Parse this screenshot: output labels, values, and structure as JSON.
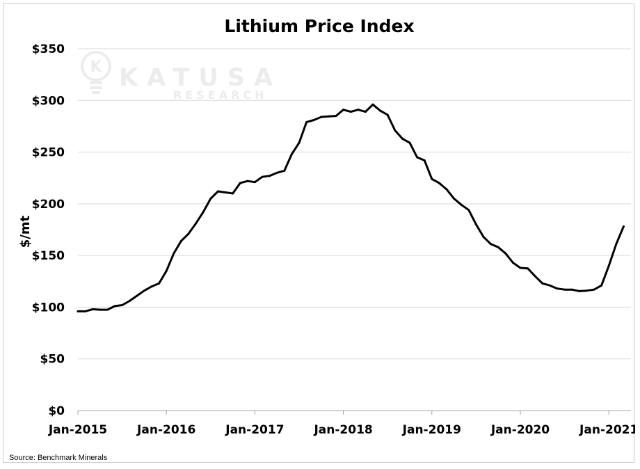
{
  "source_note": "Source: Benchmark Minerals",
  "watermark": {
    "name": "KATUSA",
    "tagline": "RESEARCH",
    "logo_letter": "K"
  },
  "colors": {
    "line": "#000000",
    "gridline": "#d9d9d9",
    "axis": "#a6a6a6",
    "watermark": "#ececec"
  },
  "chart_data": {
    "type": "line",
    "title": "Lithium Price Index",
    "xlabel": "",
    "ylabel": "$/mt",
    "ylim": [
      0,
      350
    ],
    "yticks": [
      0,
      50,
      100,
      150,
      200,
      250,
      300,
      350
    ],
    "ytick_labels": [
      "$0",
      "$50",
      "$100",
      "$150",
      "$200",
      "$250",
      "$300",
      "$350"
    ],
    "xlim_months": [
      0,
      75
    ],
    "xticks_months": [
      0,
      12,
      24,
      36,
      48,
      60,
      72
    ],
    "xtick_labels": [
      "Jan-2015",
      "Jan-2016",
      "Jan-2017",
      "Jan-2018",
      "Jan-2019",
      "Jan-2020",
      "Jan-2021"
    ],
    "grid": true,
    "legend": "none",
    "series": [
      {
        "name": "Lithium Price Index",
        "x_months": [
          0,
          1,
          2,
          3,
          4,
          5,
          6,
          7,
          8,
          9,
          10,
          11,
          12,
          13,
          14,
          15,
          16,
          17,
          18,
          19,
          20,
          21,
          22,
          23,
          24,
          25,
          26,
          27,
          28,
          29,
          30,
          31,
          32,
          33,
          34,
          35,
          36,
          37,
          38,
          39,
          40,
          41,
          42,
          43,
          44,
          45,
          46,
          47,
          48,
          49,
          50,
          51,
          52,
          53,
          54,
          55,
          56,
          57,
          58,
          59,
          60,
          61,
          62,
          63,
          64,
          65,
          66,
          67,
          68,
          69,
          70,
          71,
          72,
          73,
          74
        ],
        "values": [
          96,
          96,
          98,
          97.5,
          97.5,
          101,
          102,
          106,
          111,
          116,
          120,
          123,
          135,
          152,
          164,
          171,
          181,
          192,
          205,
          212,
          211,
          210,
          220,
          222,
          221,
          226,
          227,
          230,
          232,
          248,
          259,
          279,
          281,
          284,
          284.5,
          285,
          291,
          289,
          291,
          289,
          296,
          290,
          286,
          271,
          263,
          259,
          245,
          242,
          224,
          220,
          214,
          205,
          199,
          194,
          180,
          168,
          161,
          158,
          152,
          143,
          138,
          137.5,
          130,
          123,
          121,
          118,
          117,
          117,
          115.5,
          116,
          117,
          121,
          140,
          161,
          178
        ]
      }
    ]
  }
}
